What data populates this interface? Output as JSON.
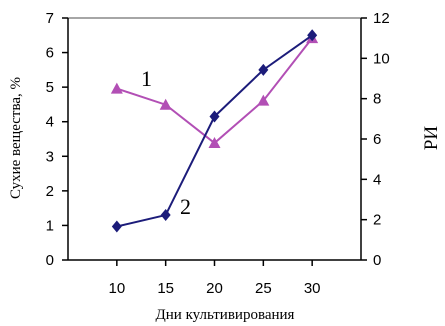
{
  "chart_data": {
    "type": "line",
    "x": [
      10,
      15,
      20,
      25,
      30
    ],
    "xticks": [
      10,
      15,
      20,
      25,
      30
    ],
    "xlim": [
      5,
      35
    ],
    "xlabel": "Дни культивирования",
    "ylabel_left": "Сухие вещества, %",
    "ylabel_right": "РИ",
    "ylim_left": [
      0,
      7
    ],
    "yticks_left": [
      0,
      1,
      2,
      3,
      4,
      5,
      6,
      7
    ],
    "ylim_right": [
      0,
      12
    ],
    "yticks_right": [
      0,
      2,
      4,
      6,
      8,
      10,
      12
    ],
    "grid": false,
    "series": [
      {
        "label": "1",
        "axis": "right",
        "color": "#b24fb5",
        "marker": "triangle",
        "values": [
          8.5,
          7.7,
          5.8,
          7.9,
          11.0
        ]
      },
      {
        "label": "2",
        "axis": "left",
        "color": "#1c1c7a",
        "marker": "diamond",
        "values": [
          0.97,
          1.3,
          4.15,
          5.5,
          6.5
        ]
      }
    ]
  }
}
